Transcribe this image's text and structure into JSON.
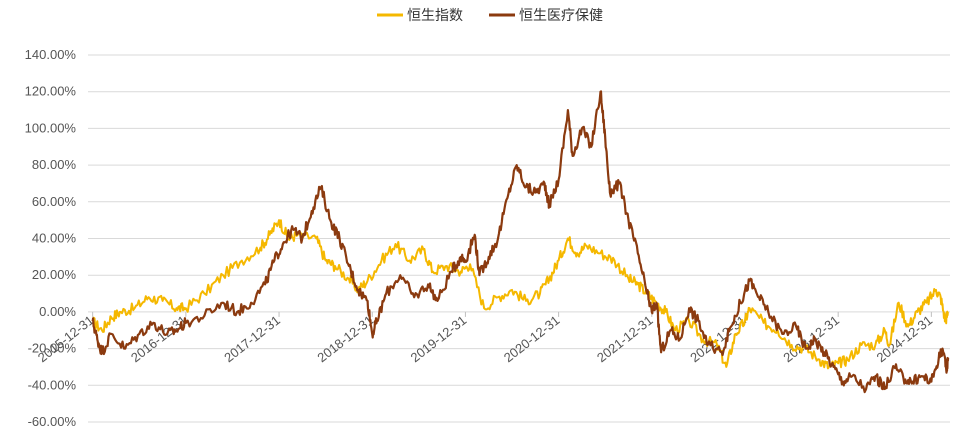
{
  "chart_data": {
    "type": "line",
    "ylim": [
      -60,
      140
    ],
    "y_ticks": [
      140,
      120,
      100,
      80,
      60,
      40,
      20,
      0,
      -20,
      -40,
      -60
    ],
    "y_tick_labels": [
      "140.00%",
      "120.00%",
      "100.00%",
      "80.00%",
      "60.00%",
      "40.00%",
      "20.00%",
      "0.00%",
      "-20.00%",
      "-40.00%",
      "-60.00%"
    ],
    "x_range": [
      2015.95,
      2025.2
    ],
    "x_ticks": [
      2016.0,
      2017.0,
      2018.0,
      2019.0,
      2020.0,
      2021.0,
      2022.0,
      2023.0,
      2024.0,
      2025.0
    ],
    "x_tick_labels": [
      "2015-12-31",
      "2016-12-31",
      "2017-12-31",
      "2018-12-31",
      "2019-12-31",
      "2020-12-31",
      "2021-12-31",
      "2022-12-31",
      "2023-12-31",
      "2024-12-31"
    ],
    "grid": "horizontal",
    "legend_position": "top-center",
    "series": [
      {
        "name": "恒生指数",
        "color": "#F5B800",
        "points": [
          [
            2016.0,
            -5
          ],
          [
            2016.1,
            -10
          ],
          [
            2016.2,
            -3
          ],
          [
            2016.3,
            0
          ],
          [
            2016.45,
            2
          ],
          [
            2016.6,
            8
          ],
          [
            2016.75,
            6
          ],
          [
            2016.9,
            2
          ],
          [
            2017.0,
            2
          ],
          [
            2017.2,
            10
          ],
          [
            2017.4,
            20
          ],
          [
            2017.6,
            28
          ],
          [
            2017.8,
            35
          ],
          [
            2017.9,
            42
          ],
          [
            2018.0,
            50
          ],
          [
            2018.1,
            40
          ],
          [
            2018.2,
            42
          ],
          [
            2018.4,
            40
          ],
          [
            2018.5,
            28
          ],
          [
            2018.6,
            25
          ],
          [
            2018.75,
            18
          ],
          [
            2018.85,
            12
          ],
          [
            2018.95,
            17
          ],
          [
            2019.1,
            28
          ],
          [
            2019.25,
            37
          ],
          [
            2019.4,
            28
          ],
          [
            2019.55,
            34
          ],
          [
            2019.65,
            22
          ],
          [
            2019.8,
            25
          ],
          [
            2019.95,
            22
          ],
          [
            2020.05,
            26
          ],
          [
            2020.2,
            2
          ],
          [
            2020.35,
            8
          ],
          [
            2020.5,
            12
          ],
          [
            2020.65,
            6
          ],
          [
            2020.8,
            10
          ],
          [
            2020.9,
            18
          ],
          [
            2021.0,
            28
          ],
          [
            2021.1,
            40
          ],
          [
            2021.2,
            32
          ],
          [
            2021.3,
            36
          ],
          [
            2021.45,
            32
          ],
          [
            2021.6,
            28
          ],
          [
            2021.75,
            18
          ],
          [
            2021.85,
            15
          ],
          [
            2021.95,
            10
          ],
          [
            2022.05,
            5
          ],
          [
            2022.15,
            0
          ],
          [
            2022.25,
            -10
          ],
          [
            2022.4,
            -5
          ],
          [
            2022.55,
            -15
          ],
          [
            2022.7,
            -18
          ],
          [
            2022.8,
            -30
          ],
          [
            2022.9,
            -12
          ],
          [
            2023.0,
            -5
          ],
          [
            2023.05,
            2
          ],
          [
            2023.2,
            -6
          ],
          [
            2023.35,
            -10
          ],
          [
            2023.5,
            -18
          ],
          [
            2023.65,
            -20
          ],
          [
            2023.8,
            -26
          ],
          [
            2023.9,
            -30
          ],
          [
            2024.0,
            -28
          ],
          [
            2024.1,
            -26
          ],
          [
            2024.25,
            -18
          ],
          [
            2024.4,
            -18
          ],
          [
            2024.5,
            -10
          ],
          [
            2024.55,
            -18
          ],
          [
            2024.65,
            5
          ],
          [
            2024.75,
            -8
          ],
          [
            2024.85,
            0
          ],
          [
            2024.95,
            5
          ],
          [
            2025.05,
            12
          ],
          [
            2025.1,
            8
          ],
          [
            2025.15,
            -5
          ],
          [
            2025.18,
            0
          ]
        ]
      },
      {
        "name": "恒生医疗保健",
        "color": "#8B3A0F",
        "points": [
          [
            2016.0,
            -5
          ],
          [
            2016.05,
            -15
          ],
          [
            2016.1,
            -22
          ],
          [
            2016.2,
            -12
          ],
          [
            2016.35,
            -20
          ],
          [
            2016.5,
            -12
          ],
          [
            2016.65,
            -6
          ],
          [
            2016.8,
            -12
          ],
          [
            2016.9,
            -10
          ],
          [
            2017.0,
            -6
          ],
          [
            2017.2,
            -2
          ],
          [
            2017.4,
            5
          ],
          [
            2017.55,
            0
          ],
          [
            2017.7,
            5
          ],
          [
            2017.85,
            15
          ],
          [
            2017.95,
            28
          ],
          [
            2018.05,
            38
          ],
          [
            2018.15,
            45
          ],
          [
            2018.25,
            40
          ],
          [
            2018.35,
            55
          ],
          [
            2018.45,
            68
          ],
          [
            2018.55,
            50
          ],
          [
            2018.65,
            40
          ],
          [
            2018.75,
            25
          ],
          [
            2018.85,
            12
          ],
          [
            2018.95,
            6
          ],
          [
            2019.0,
            -12
          ],
          [
            2019.05,
            -5
          ],
          [
            2019.15,
            10
          ],
          [
            2019.3,
            20
          ],
          [
            2019.45,
            8
          ],
          [
            2019.6,
            15
          ],
          [
            2019.7,
            6
          ],
          [
            2019.85,
            22
          ],
          [
            2019.95,
            30
          ],
          [
            2020.0,
            28
          ],
          [
            2020.1,
            42
          ],
          [
            2020.15,
            20
          ],
          [
            2020.25,
            30
          ],
          [
            2020.35,
            40
          ],
          [
            2020.45,
            62
          ],
          [
            2020.55,
            80
          ],
          [
            2020.65,
            68
          ],
          [
            2020.75,
            65
          ],
          [
            2020.85,
            70
          ],
          [
            2020.9,
            58
          ],
          [
            2021.0,
            72
          ],
          [
            2021.1,
            110
          ],
          [
            2021.15,
            85
          ],
          [
            2021.25,
            100
          ],
          [
            2021.35,
            90
          ],
          [
            2021.45,
            120
          ],
          [
            2021.5,
            95
          ],
          [
            2021.55,
            65
          ],
          [
            2021.65,
            70
          ],
          [
            2021.75,
            50
          ],
          [
            2021.85,
            32
          ],
          [
            2021.95,
            10
          ],
          [
            2022.0,
            0
          ],
          [
            2022.05,
            5
          ],
          [
            2022.1,
            -22
          ],
          [
            2022.2,
            -10
          ],
          [
            2022.3,
            -15
          ],
          [
            2022.4,
            2
          ],
          [
            2022.5,
            -5
          ],
          [
            2022.6,
            -18
          ],
          [
            2022.75,
            -22
          ],
          [
            2022.85,
            -8
          ],
          [
            2022.95,
            5
          ],
          [
            2023.05,
            17
          ],
          [
            2023.15,
            8
          ],
          [
            2023.25,
            0
          ],
          [
            2023.4,
            -12
          ],
          [
            2023.55,
            -8
          ],
          [
            2023.65,
            -20
          ],
          [
            2023.75,
            -15
          ],
          [
            2023.85,
            -22
          ],
          [
            2023.95,
            -30
          ],
          [
            2024.05,
            -38
          ],
          [
            2024.15,
            -35
          ],
          [
            2024.3,
            -42
          ],
          [
            2024.4,
            -35
          ],
          [
            2024.5,
            -42
          ],
          [
            2024.6,
            -30
          ],
          [
            2024.7,
            -36
          ],
          [
            2024.8,
            -38
          ],
          [
            2024.9,
            -35
          ],
          [
            2025.0,
            -38
          ],
          [
            2025.08,
            -25
          ],
          [
            2025.12,
            -20
          ],
          [
            2025.16,
            -32
          ],
          [
            2025.18,
            -25
          ]
        ]
      }
    ]
  }
}
